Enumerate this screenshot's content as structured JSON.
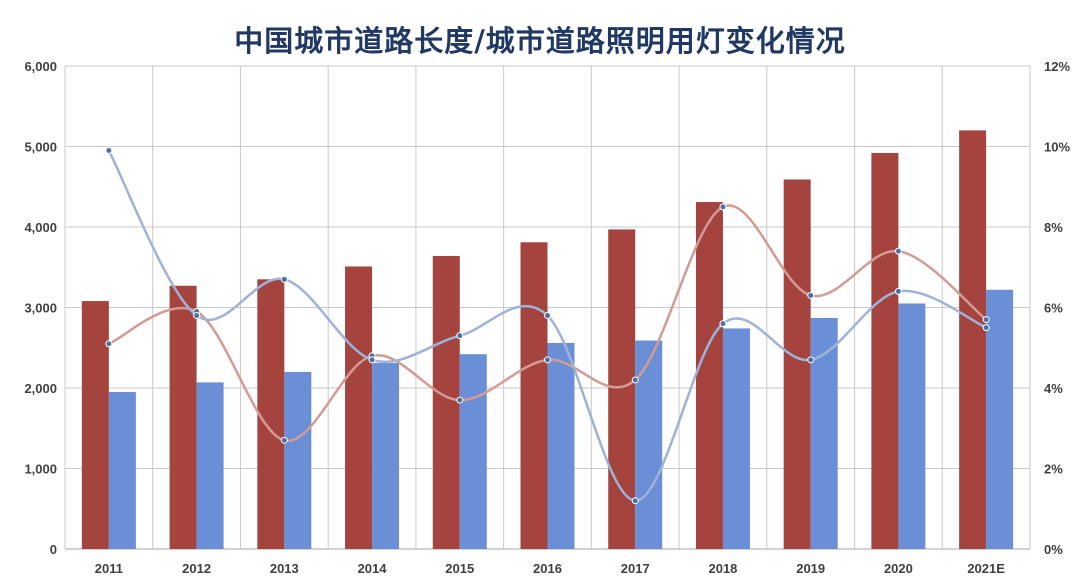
{
  "chart_data": {
    "type": "bar",
    "title": "中国城市道路长度/城市道路照明用灯变化情况",
    "categories": [
      "2011",
      "2012",
      "2013",
      "2014",
      "2015",
      "2016",
      "2017",
      "2018",
      "2019",
      "2020",
      "2021E"
    ],
    "y_left": {
      "min": 0,
      "max": 6000,
      "ticks": [
        "0",
        "1,000",
        "2,000",
        "3,000",
        "4,000",
        "5,000",
        "6,000"
      ]
    },
    "y_right": {
      "min": 0,
      "max": 12,
      "ticks": [
        "0%",
        "2%",
        "4%",
        "6%",
        "8%",
        "10%",
        "12%"
      ]
    },
    "series": [
      {
        "name": "series-red-bar",
        "kind": "bar",
        "axis": "left",
        "color": "#a5443f",
        "values": [
          3080,
          3270,
          3350,
          3510,
          3640,
          3810,
          3970,
          4310,
          4590,
          4920,
          5200
        ]
      },
      {
        "name": "series-blue-bar",
        "kind": "bar",
        "axis": "left",
        "color": "#6b8fd6",
        "values": [
          1950,
          2070,
          2200,
          2310,
          2420,
          2560,
          2590,
          2740,
          2870,
          3050,
          3220
        ]
      },
      {
        "name": "series-red-line",
        "kind": "line",
        "axis": "right",
        "color": "#d49a94",
        "values": [
          5.1,
          5.9,
          2.7,
          4.8,
          3.7,
          4.7,
          4.2,
          8.5,
          6.3,
          7.4,
          5.7
        ]
      },
      {
        "name": "series-blue-line",
        "kind": "line",
        "axis": "right",
        "color": "#9db3d9",
        "values": [
          9.9,
          5.8,
          6.7,
          4.7,
          5.3,
          5.8,
          1.2,
          5.6,
          4.7,
          6.4,
          5.5
        ]
      }
    ],
    "grid": true,
    "legend": "none"
  }
}
